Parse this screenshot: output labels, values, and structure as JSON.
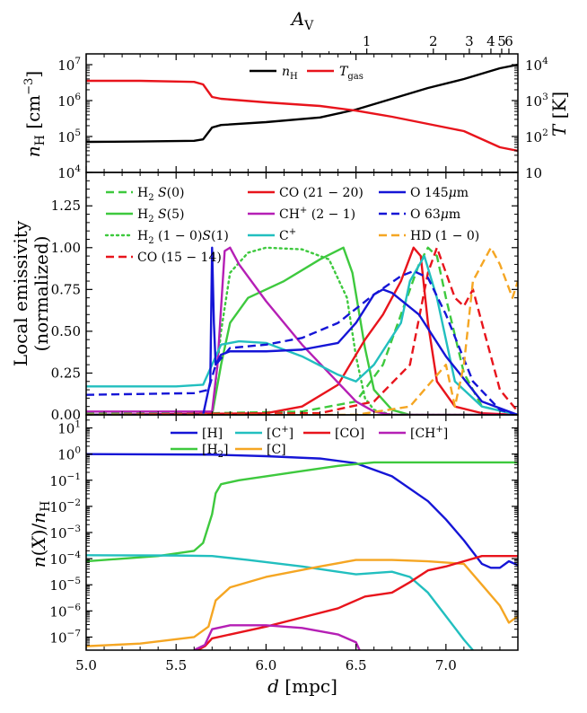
{
  "figure": {
    "xlabel": "d [mpc]",
    "top_axis_label": "A_V",
    "top_ticks": [
      "1",
      "2",
      "3",
      "4",
      "5",
      "6"
    ],
    "top_tick_positions_mpc": [
      6.56,
      6.93,
      7.13,
      7.25,
      7.31,
      7.35
    ],
    "colors": {
      "black": "#000000",
      "red": "#e8141c",
      "green": "#3ec93e",
      "blue": "#1515d6",
      "cyan": "#22bfbf",
      "purple": "#b51fb5",
      "orange": "#f5a623"
    }
  },
  "chart_data": [
    {
      "type": "line",
      "title": "",
      "xlabel": "",
      "ylabel": "n_H [cm^-3]",
      "ylabel_right": "T [K]",
      "xlim": [
        5.0,
        7.4
      ],
      "ylim_log10": [
        4,
        7.3
      ],
      "yticks_left": [
        "10^4",
        "10^5",
        "10^6",
        "10^7"
      ],
      "yticks_right": [
        "10",
        "10^2",
        "10^3",
        "10^4"
      ],
      "legend": [
        "n_H",
        "T_gas"
      ],
      "series": [
        {
          "name": "n_H",
          "color": "black",
          "dash": "solid",
          "x": [
            5.0,
            5.3,
            5.6,
            5.65,
            5.7,
            5.75,
            6.0,
            6.3,
            6.5,
            6.7,
            6.9,
            7.1,
            7.3,
            7.4
          ],
          "y": [
            4.85,
            4.86,
            4.88,
            4.92,
            5.25,
            5.32,
            5.4,
            5.53,
            5.75,
            6.05,
            6.35,
            6.6,
            6.9,
            7.0
          ]
        },
        {
          "name": "T_gas",
          "color": "red",
          "dash": "solid",
          "x": [
            5.0,
            5.3,
            5.6,
            5.65,
            5.7,
            5.75,
            6.0,
            6.3,
            6.5,
            6.7,
            6.9,
            7.1,
            7.3,
            7.4
          ],
          "y": [
            6.55,
            6.55,
            6.52,
            6.45,
            6.1,
            6.05,
            5.95,
            5.85,
            5.72,
            5.55,
            5.35,
            5.15,
            4.7,
            4.6
          ]
        }
      ]
    },
    {
      "type": "line",
      "xlabel": "",
      "ylabel": "Local emissivity (normalized)",
      "xlim": [
        5.0,
        7.4
      ],
      "ylim": [
        0.0,
        1.45
      ],
      "yticks": [
        "0.00",
        "0.25",
        "0.50",
        "0.75",
        "1.00",
        "1.25"
      ],
      "legend": [
        "H2 S(0)",
        "H2 S(5)",
        "H2 (1-0) S(1)",
        "CO (15-14)",
        "CO (21-20)",
        "CH+ (2-1)",
        "C+",
        "O 145μm",
        "O 63μm",
        "HD (1-0)"
      ],
      "series": [
        {
          "name": "H2 S(0)",
          "color": "green",
          "dash": "dashed",
          "x": [
            5.0,
            5.7,
            6.2,
            6.5,
            6.65,
            6.75,
            6.85,
            6.9,
            6.95,
            7.0,
            7.1,
            7.2,
            7.4
          ],
          "y": [
            0.01,
            0.01,
            0.02,
            0.08,
            0.3,
            0.6,
            0.9,
            1.0,
            0.95,
            0.7,
            0.25,
            0.05,
            0.0
          ]
        },
        {
          "name": "H2 S(5)",
          "color": "green",
          "dash": "solid",
          "x": [
            5.0,
            5.7,
            5.75,
            5.8,
            5.9,
            6.1,
            6.3,
            6.43,
            6.48,
            6.55,
            6.6,
            6.7,
            6.8,
            7.4
          ],
          "y": [
            0.0,
            0.0,
            0.3,
            0.55,
            0.7,
            0.8,
            0.93,
            1.0,
            0.85,
            0.4,
            0.15,
            0.03,
            0.0,
            0.0
          ]
        },
        {
          "name": "H2 (1-0) S(1)",
          "color": "green",
          "dash": "dotted",
          "x": [
            5.0,
            5.7,
            5.75,
            5.8,
            5.9,
            6.0,
            6.2,
            6.35,
            6.45,
            6.5,
            6.55,
            6.6,
            6.7,
            7.4
          ],
          "y": [
            0.0,
            0.0,
            0.5,
            0.85,
            0.97,
            1.0,
            0.99,
            0.93,
            0.7,
            0.35,
            0.1,
            0.03,
            0.0,
            0.0
          ]
        },
        {
          "name": "CO (15-14)",
          "color": "red",
          "dash": "dashed",
          "x": [
            5.0,
            6.3,
            6.6,
            6.8,
            6.9,
            6.95,
            7.0,
            7.05,
            7.1,
            7.15,
            7.2,
            7.3,
            7.4
          ],
          "y": [
            0.0,
            0.01,
            0.08,
            0.3,
            0.85,
            1.0,
            0.85,
            0.7,
            0.65,
            0.75,
            0.55,
            0.15,
            0.02
          ]
        },
        {
          "name": "CO (21-20)",
          "color": "red",
          "dash": "solid",
          "x": [
            5.0,
            6.0,
            6.2,
            6.4,
            6.55,
            6.65,
            6.75,
            6.82,
            6.86,
            6.9,
            6.95,
            7.05,
            7.2,
            7.4
          ],
          "y": [
            0.0,
            0.01,
            0.05,
            0.18,
            0.45,
            0.6,
            0.8,
            1.0,
            0.95,
            0.55,
            0.2,
            0.05,
            0.01,
            0.0
          ]
        },
        {
          "name": "CH+ (2-1)",
          "color": "purple",
          "dash": "solid",
          "x": [
            5.0,
            5.7,
            5.73,
            5.77,
            5.8,
            5.85,
            6.0,
            6.2,
            6.35,
            6.5,
            6.6,
            6.7,
            7.4
          ],
          "y": [
            0.02,
            0.02,
            0.3,
            0.98,
            1.0,
            0.9,
            0.68,
            0.42,
            0.25,
            0.08,
            0.02,
            0.0,
            0.0
          ]
        },
        {
          "name": "C+",
          "color": "cyan",
          "dash": "solid",
          "x": [
            5.0,
            5.5,
            5.65,
            5.7,
            5.75,
            5.85,
            6.0,
            6.2,
            6.4,
            6.5,
            6.6,
            6.75,
            6.8,
            6.88,
            6.95,
            7.05,
            7.2,
            7.4
          ],
          "y": [
            0.17,
            0.17,
            0.18,
            0.3,
            0.42,
            0.44,
            0.43,
            0.35,
            0.24,
            0.2,
            0.3,
            0.55,
            0.8,
            0.95,
            0.7,
            0.2,
            0.05,
            0.0
          ]
        },
        {
          "name": "O 145μm",
          "color": "blue",
          "dash": "solid",
          "x": [
            5.0,
            5.65,
            5.69,
            5.7,
            5.71,
            5.72,
            5.75,
            5.8,
            6.0,
            6.2,
            6.4,
            6.5,
            6.6,
            6.65,
            6.7,
            6.85,
            7.0,
            7.2,
            7.4
          ],
          "y": [
            0.0,
            0.0,
            0.2,
            1.0,
            0.55,
            0.3,
            0.36,
            0.38,
            0.38,
            0.39,
            0.43,
            0.55,
            0.72,
            0.75,
            0.73,
            0.6,
            0.35,
            0.08,
            0.0
          ]
        },
        {
          "name": "O 63μm",
          "color": "blue",
          "dash": "dashed",
          "x": [
            5.0,
            5.6,
            5.68,
            5.72,
            5.8,
            6.0,
            6.2,
            6.4,
            6.6,
            6.75,
            6.82,
            6.9,
            7.0,
            7.15,
            7.3,
            7.4
          ],
          "y": [
            0.12,
            0.13,
            0.15,
            0.3,
            0.4,
            0.42,
            0.46,
            0.55,
            0.72,
            0.83,
            0.86,
            0.82,
            0.6,
            0.2,
            0.03,
            0.0
          ]
        },
        {
          "name": "HD (1-0)",
          "color": "orange",
          "dash": "dashed",
          "x": [
            5.0,
            6.5,
            6.8,
            7.0,
            7.05,
            7.1,
            7.15,
            7.25,
            7.3,
            7.37,
            7.4
          ],
          "y": [
            0.0,
            0.0,
            0.05,
            0.3,
            0.05,
            0.3,
            0.8,
            1.0,
            0.9,
            0.7,
            0.8
          ]
        }
      ]
    },
    {
      "type": "line",
      "xlabel": "d [mpc]",
      "ylabel": "n(X)/n_H",
      "xlim": [
        5.0,
        7.4
      ],
      "xticks": [
        "5.0",
        "5.5",
        "6.0",
        "6.5",
        "7.0"
      ],
      "ylim_log10": [
        -7.5,
        1.5
      ],
      "yticks": [
        "10^1",
        "10^0",
        "10^-1",
        "10^-2",
        "10^-3",
        "10^-4",
        "10^-5",
        "10^-6",
        "10^-7"
      ],
      "legend": [
        "[H]",
        "[H2]",
        "[C+]",
        "[C]",
        "[CO]",
        "[CH+]"
      ],
      "series": [
        {
          "name": "[H]",
          "color": "blue",
          "dash": "solid",
          "x": [
            5.0,
            5.7,
            6.0,
            6.3,
            6.5,
            6.7,
            6.9,
            7.0,
            7.1,
            7.2,
            7.25,
            7.3,
            7.35,
            7.4
          ],
          "y": [
            0.0,
            -0.02,
            -0.08,
            -0.17,
            -0.35,
            -0.85,
            -1.8,
            -2.5,
            -3.3,
            -4.2,
            -4.35,
            -4.35,
            -4.1,
            -4.25
          ]
        },
        {
          "name": "[H2]",
          "color": "green",
          "dash": "solid",
          "x": [
            5.0,
            5.4,
            5.6,
            5.65,
            5.7,
            5.72,
            5.75,
            5.85,
            6.0,
            6.2,
            6.4,
            6.6,
            7.4
          ],
          "y": [
            -4.1,
            -3.9,
            -3.7,
            -3.4,
            -2.3,
            -1.5,
            -1.15,
            -1.0,
            -0.85,
            -0.65,
            -0.45,
            -0.32,
            -0.32
          ]
        },
        {
          "name": "[C+]",
          "color": "cyan",
          "dash": "solid",
          "x": [
            5.0,
            5.5,
            5.7,
            5.9,
            6.2,
            6.4,
            6.5,
            6.7,
            6.8,
            6.9,
            7.0,
            7.1,
            7.15
          ],
          "y": [
            -3.87,
            -3.88,
            -3.9,
            -4.05,
            -4.3,
            -4.5,
            -4.6,
            -4.5,
            -4.7,
            -5.3,
            -6.2,
            -7.1,
            -7.5
          ]
        },
        {
          "name": "[C]",
          "color": "orange",
          "dash": "solid",
          "x": [
            5.0,
            5.3,
            5.6,
            5.68,
            5.72,
            5.8,
            6.0,
            6.3,
            6.5,
            6.7,
            6.9,
            7.1,
            7.2,
            7.3,
            7.35,
            7.4
          ],
          "y": [
            -7.35,
            -7.25,
            -7.0,
            -6.6,
            -5.6,
            -5.1,
            -4.7,
            -4.3,
            -4.05,
            -4.05,
            -4.1,
            -4.2,
            -5.0,
            -5.8,
            -6.45,
            -6.2
          ]
        },
        {
          "name": "[CO]",
          "color": "red",
          "dash": "solid",
          "x": [
            5.62,
            5.66,
            5.7,
            5.8,
            6.0,
            6.2,
            6.4,
            6.55,
            6.7,
            6.8,
            6.9,
            7.0,
            7.1,
            7.2,
            7.4
          ],
          "y": [
            -7.5,
            -7.35,
            -7.05,
            -6.9,
            -6.6,
            -6.25,
            -5.9,
            -5.45,
            -5.3,
            -4.9,
            -4.45,
            -4.3,
            -4.1,
            -3.9,
            -3.9
          ]
        },
        {
          "name": "[CH+]",
          "color": "purple",
          "dash": "solid",
          "x": [
            5.6,
            5.66,
            5.7,
            5.8,
            6.0,
            6.2,
            6.4,
            6.5,
            6.52
          ],
          "y": [
            -7.5,
            -7.3,
            -6.7,
            -6.55,
            -6.55,
            -6.65,
            -6.9,
            -7.2,
            -7.5
          ]
        }
      ]
    }
  ]
}
